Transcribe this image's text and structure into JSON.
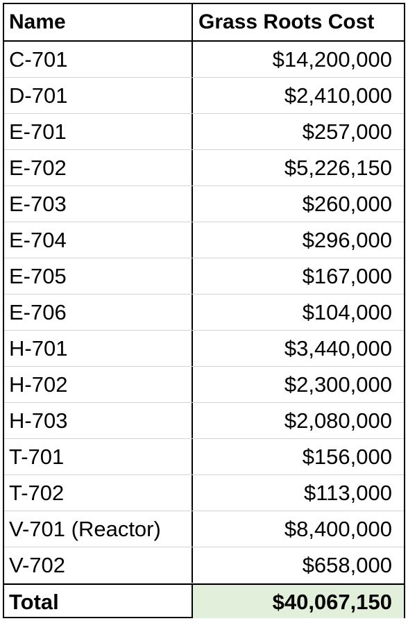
{
  "table": {
    "headers": {
      "name": "Name",
      "cost": "Grass Roots Cost"
    },
    "rows": [
      {
        "name": "C-701",
        "cost": "$14,200,000"
      },
      {
        "name": "D-701",
        "cost": "$2,410,000"
      },
      {
        "name": "E-701",
        "cost": "$257,000"
      },
      {
        "name": "E-702",
        "cost": "$5,226,150"
      },
      {
        "name": "E-703",
        "cost": "$260,000"
      },
      {
        "name": "E-704",
        "cost": "$296,000"
      },
      {
        "name": "E-705",
        "cost": "$167,000"
      },
      {
        "name": "E-706",
        "cost": "$104,000"
      },
      {
        "name": "H-701",
        "cost": "$3,440,000"
      },
      {
        "name": "H-702",
        "cost": "$2,300,000"
      },
      {
        "name": "H-703",
        "cost": "$2,080,000"
      },
      {
        "name": "T-701",
        "cost": "$156,000"
      },
      {
        "name": "T-702",
        "cost": "$113,000"
      },
      {
        "name": "V-701 (Reactor)",
        "cost": "$8,400,000"
      },
      {
        "name": "V-702",
        "cost": "$658,000"
      }
    ],
    "total": {
      "name": "Total",
      "cost": "$40,067,150"
    }
  },
  "colors": {
    "total_highlight": "#e2efda",
    "border": "#000000",
    "gridline": "#d3d3d3"
  }
}
